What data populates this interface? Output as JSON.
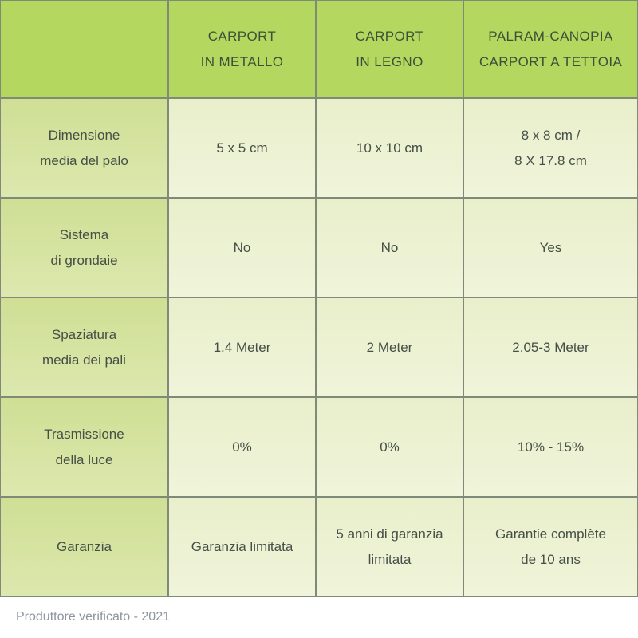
{
  "table": {
    "header": [
      "",
      "CARPORT\nIN METALLO",
      "CARPORT\nIN LEGNO",
      "PALRAM-CANOPIA\nCARPORT A TETTOIA"
    ],
    "rows": [
      {
        "label": "Dimensione\nmedia del palo",
        "values": [
          "5 x 5 cm",
          "10 x 10 cm",
          "8 x 8 cm /\n8 X 17.8 cm"
        ]
      },
      {
        "label": "Sistema\ndi grondaie",
        "values": [
          "No",
          "No",
          "Yes"
        ]
      },
      {
        "label": "Spaziatura\nmedia dei pali",
        "values": [
          "1.4 Meter",
          "2 Meter",
          "2.05-3 Meter"
        ]
      },
      {
        "label": "Trasmissione\ndella luce",
        "values": [
          "0%",
          "0%",
          "10% - 15%"
        ]
      },
      {
        "label": "Garanzia",
        "values": [
          "Garanzia limitata",
          "5 anni di garanzia\nlimitata",
          "Garantie complète\nde 10 ans"
        ]
      }
    ],
    "footer_text": "Produttore verificato - 2021"
  },
  "colors": {
    "header_bg": "#b4d85f",
    "header_text": "#3c4f39",
    "label_bg_top": "#cfdf94",
    "label_bg_bottom": "#dce8ae",
    "cell_bg_top": "#e9efcb",
    "cell_bg_bottom": "#f0f4da",
    "border": "#7f8a78",
    "cell_text": "#454f46",
    "footer_text": "#8e959e"
  }
}
